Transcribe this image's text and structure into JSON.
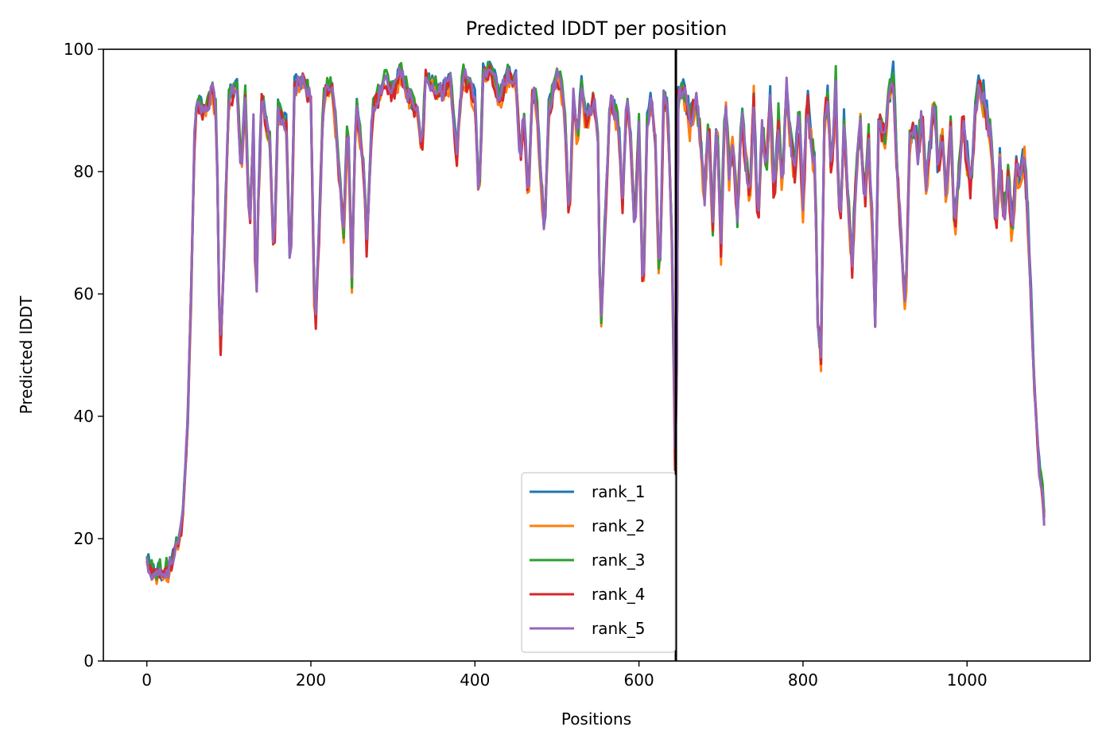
{
  "chart_data": {
    "type": "line",
    "title": "Predicted lDDT per position",
    "xlabel": "Positions",
    "ylabel": "Predicted lDDT",
    "xlim": [
      -53,
      1150
    ],
    "ylim": [
      0,
      100
    ],
    "xticks": [
      0,
      200,
      400,
      600,
      800,
      1000
    ],
    "xtick_labels": [
      "0",
      "200",
      "400",
      "600",
      "800",
      "1000"
    ],
    "yticks": [
      0,
      20,
      40,
      60,
      80,
      100
    ],
    "ytick_labels": [
      "0",
      "20",
      "40",
      "60",
      "80",
      "100"
    ],
    "grid": false,
    "legend_position": "lower-center",
    "vline": {
      "x": 645,
      "color": "#000000"
    },
    "x_range": [
      0,
      1095
    ],
    "series": [
      {
        "name": "rank_1",
        "color": "#1f77b4",
        "offset": 0.3
      },
      {
        "name": "rank_2",
        "color": "#ff7f0e",
        "offset": -0.8
      },
      {
        "name": "rank_3",
        "color": "#2ca02c",
        "offset": 0.5
      },
      {
        "name": "rank_4",
        "color": "#d62728",
        "offset": -0.4
      },
      {
        "name": "rank_5",
        "color": "#9467bd",
        "offset": 0.0
      }
    ],
    "profile": [
      [
        0,
        16
      ],
      [
        5,
        15
      ],
      [
        10,
        14
      ],
      [
        15,
        15
      ],
      [
        20,
        14
      ],
      [
        30,
        16
      ],
      [
        40,
        20
      ],
      [
        45,
        25
      ],
      [
        50,
        40
      ],
      [
        55,
        65
      ],
      [
        58,
        85
      ],
      [
        62,
        92
      ],
      [
        70,
        90
      ],
      [
        80,
        93
      ],
      [
        85,
        90
      ],
      [
        88,
        60
      ],
      [
        90,
        52
      ],
      [
        95,
        70
      ],
      [
        100,
        92
      ],
      [
        110,
        94
      ],
      [
        115,
        80
      ],
      [
        120,
        93
      ],
      [
        125,
        70
      ],
      [
        130,
        88
      ],
      [
        133,
        55
      ],
      [
        136,
        75
      ],
      [
        140,
        92
      ],
      [
        150,
        85
      ],
      [
        155,
        65
      ],
      [
        160,
        90
      ],
      [
        170,
        88
      ],
      [
        175,
        62
      ],
      [
        180,
        94
      ],
      [
        190,
        95
      ],
      [
        200,
        92
      ],
      [
        205,
        52
      ],
      [
        210,
        70
      ],
      [
        215,
        92
      ],
      [
        225,
        95
      ],
      [
        230,
        88
      ],
      [
        240,
        70
      ],
      [
        245,
        90
      ],
      [
        250,
        62
      ],
      [
        255,
        92
      ],
      [
        265,
        80
      ],
      [
        268,
        68
      ],
      [
        275,
        90
      ],
      [
        290,
        95
      ],
      [
        300,
        93
      ],
      [
        310,
        96
      ],
      [
        320,
        92
      ],
      [
        330,
        90
      ],
      [
        335,
        82
      ],
      [
        340,
        96
      ],
      [
        350,
        94
      ],
      [
        360,
        93
      ],
      [
        370,
        95
      ],
      [
        378,
        82
      ],
      [
        385,
        96
      ],
      [
        400,
        92
      ],
      [
        405,
        75
      ],
      [
        410,
        96
      ],
      [
        420,
        97
      ],
      [
        430,
        92
      ],
      [
        440,
        96
      ],
      [
        450,
        95
      ],
      [
        455,
        82
      ],
      [
        460,
        90
      ],
      [
        465,
        75
      ],
      [
        470,
        93
      ],
      [
        475,
        92
      ],
      [
        480,
        80
      ],
      [
        485,
        70
      ],
      [
        490,
        90
      ],
      [
        500,
        96
      ],
      [
        505,
        94
      ],
      [
        510,
        88
      ],
      [
        515,
        72
      ],
      [
        520,
        92
      ],
      [
        525,
        85
      ],
      [
        530,
        95
      ],
      [
        535,
        88
      ],
      [
        540,
        90
      ],
      [
        545,
        92
      ],
      [
        550,
        85
      ],
      [
        553,
        52
      ],
      [
        558,
        70
      ],
      [
        565,
        92
      ],
      [
        575,
        88
      ],
      [
        580,
        75
      ],
      [
        585,
        92
      ],
      [
        590,
        85
      ],
      [
        595,
        70
      ],
      [
        600,
        88
      ],
      [
        605,
        58
      ],
      [
        610,
        88
      ],
      [
        615,
        92
      ],
      [
        620,
        85
      ],
      [
        625,
        60
      ],
      [
        630,
        92
      ],
      [
        635,
        90
      ],
      [
        640,
        70
      ],
      [
        645,
        25
      ],
      [
        648,
        92
      ],
      [
        655,
        94
      ],
      [
        662,
        88
      ],
      [
        670,
        92
      ],
      [
        675,
        85
      ],
      [
        680,
        76
      ],
      [
        685,
        88
      ],
      [
        690,
        72
      ],
      [
        695,
        90
      ],
      [
        700,
        68
      ],
      [
        705,
        92
      ],
      [
        710,
        80
      ],
      [
        715,
        85
      ],
      [
        720,
        72
      ],
      [
        725,
        90
      ],
      [
        730,
        82
      ],
      [
        735,
        75
      ],
      [
        740,
        92
      ],
      [
        745,
        70
      ],
      [
        750,
        88
      ],
      [
        755,
        80
      ],
      [
        760,
        92
      ],
      [
        765,
        75
      ],
      [
        770,
        88
      ],
      [
        775,
        78
      ],
      [
        780,
        94
      ],
      [
        785,
        85
      ],
      [
        790,
        80
      ],
      [
        795,
        90
      ],
      [
        800,
        75
      ],
      [
        805,
        92
      ],
      [
        810,
        85
      ],
      [
        815,
        80
      ],
      [
        818,
        55
      ],
      [
        822,
        50
      ],
      [
        826,
        88
      ],
      [
        830,
        92
      ],
      [
        835,
        80
      ],
      [
        840,
        94
      ],
      [
        845,
        70
      ],
      [
        850,
        88
      ],
      [
        855,
        75
      ],
      [
        860,
        65
      ],
      [
        865,
        80
      ],
      [
        870,
        88
      ],
      [
        875,
        75
      ],
      [
        880,
        85
      ],
      [
        885,
        70
      ],
      [
        888,
        55
      ],
      [
        892,
        88
      ],
      [
        900,
        85
      ],
      [
        905,
        92
      ],
      [
        910,
        95
      ],
      [
        915,
        80
      ],
      [
        920,
        68
      ],
      [
        925,
        57
      ],
      [
        930,
        85
      ],
      [
        935,
        88
      ],
      [
        940,
        82
      ],
      [
        945,
        90
      ],
      [
        950,
        78
      ],
      [
        955,
        85
      ],
      [
        960,
        92
      ],
      [
        965,
        80
      ],
      [
        970,
        86
      ],
      [
        975,
        75
      ],
      [
        980,
        88
      ],
      [
        985,
        70
      ],
      [
        990,
        80
      ],
      [
        995,
        88
      ],
      [
        1000,
        82
      ],
      [
        1005,
        78
      ],
      [
        1010,
        90
      ],
      [
        1015,
        94
      ],
      [
        1020,
        92
      ],
      [
        1025,
        88
      ],
      [
        1030,
        85
      ],
      [
        1035,
        70
      ],
      [
        1040,
        82
      ],
      [
        1045,
        72
      ],
      [
        1050,
        80
      ],
      [
        1055,
        70
      ],
      [
        1060,
        82
      ],
      [
        1065,
        78
      ],
      [
        1070,
        83
      ],
      [
        1075,
        70
      ],
      [
        1078,
        60
      ],
      [
        1082,
        45
      ],
      [
        1085,
        38
      ],
      [
        1088,
        32
      ],
      [
        1092,
        28
      ],
      [
        1095,
        20
      ]
    ]
  }
}
